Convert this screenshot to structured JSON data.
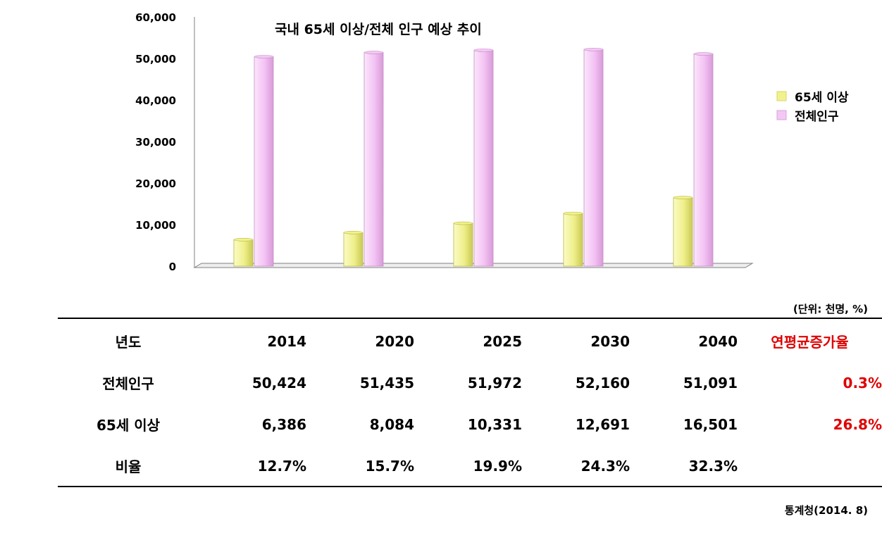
{
  "chart_data": {
    "type": "bar",
    "title": "국내 65세 이상/전체 인구 예상 추이",
    "categories": [
      "2014",
      "2020",
      "2025",
      "2030",
      "2040"
    ],
    "series": [
      {
        "name": "65세 이상",
        "values": [
          6386,
          8084,
          10331,
          12691,
          16501
        ],
        "color": "#f2f28c"
      },
      {
        "name": "전체인구",
        "values": [
          50424,
          51435,
          51972,
          52160,
          51091
        ],
        "color": "#f4c8f4"
      }
    ],
    "yticks": [
      "0",
      "10,000",
      "20,000",
      "30,000",
      "40,000",
      "50,000",
      "60,000"
    ],
    "ylim": [
      0,
      60000
    ],
    "legend_position": "right",
    "grid": false
  },
  "unit_note": "(단위: 천명, %)",
  "table": {
    "header": {
      "label": "년도",
      "years": [
        "2014",
        "2020",
        "2025",
        "2030",
        "2040"
      ],
      "growth": "연평균증가율"
    },
    "rows": [
      {
        "label": "전체인구",
        "values": [
          "50,424",
          "51,435",
          "51,972",
          "52,160",
          "51,091"
        ],
        "growth": "0.3%"
      },
      {
        "label": "65세 이상",
        "values": [
          "6,386",
          "8,084",
          "10,331",
          "12,691",
          "16,501"
        ],
        "growth": "26.8%"
      },
      {
        "label": "비율",
        "values": [
          "12.7%",
          "15.7%",
          "19.9%",
          "24.3%",
          "32.3%"
        ],
        "growth": ""
      }
    ]
  },
  "source": "통계청(2014. 8)"
}
